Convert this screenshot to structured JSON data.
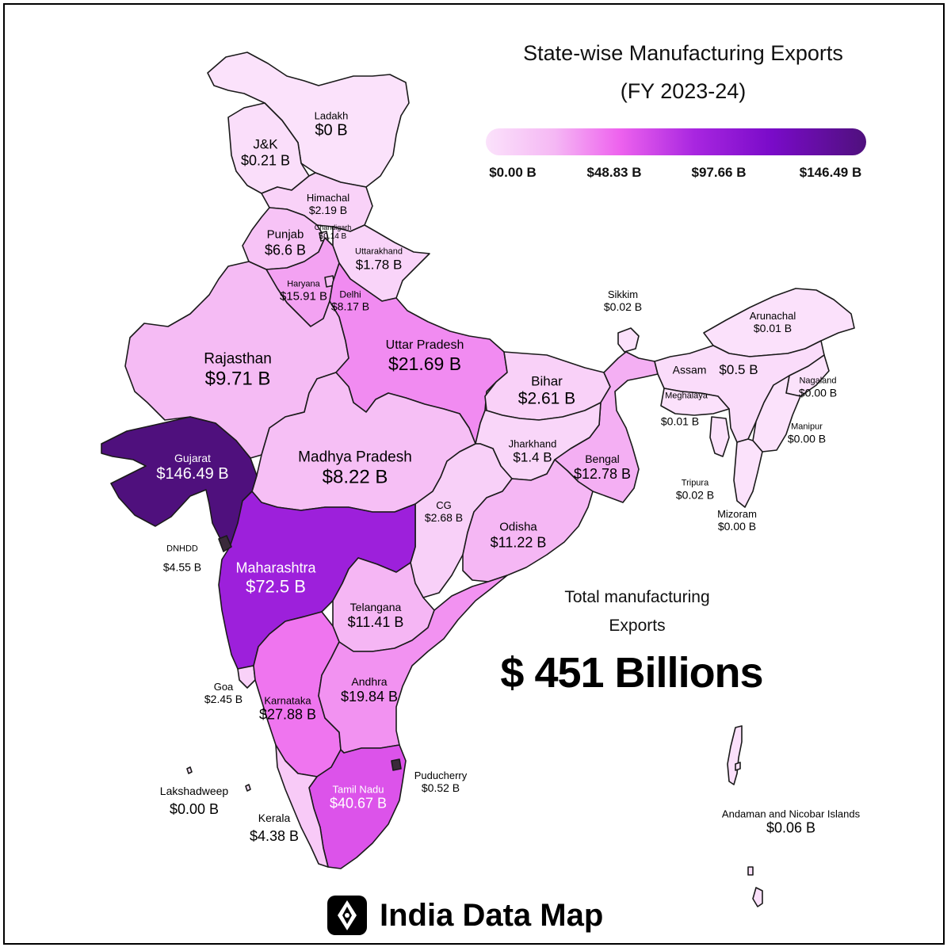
{
  "title": {
    "line1": "State-wise Manufacturing Exports",
    "line2": "(FY 2023-24)"
  },
  "legend": {
    "ticks": [
      "$0.00 B",
      "$48.83 B",
      "$97.66 B",
      "$146.49 B"
    ],
    "min": 0,
    "max": 146.49,
    "colors": [
      "#fbe2fb",
      "#f5b8f4",
      "#ee63ee",
      "#a826e0",
      "#7a0bc9",
      "#4f107d"
    ]
  },
  "total": {
    "line1": "Total manufacturing",
    "line2": "Exports",
    "value": "$ 451 Billions"
  },
  "brand": {
    "name": "India Data Map",
    "icon": "compass-diamond-icon"
  },
  "regions": [
    {
      "id": "ladakh",
      "name": "Ladakh",
      "value": "$0 B",
      "amount": 0
    },
    {
      "id": "jk",
      "name": "J&K",
      "value": "$0.21 B",
      "amount": 0.21
    },
    {
      "id": "himachal",
      "name": "Himachal",
      "value": "$2.19 B",
      "amount": 2.19
    },
    {
      "id": "chandigarh",
      "name": "Chandigarh",
      "value": "$0.14 B",
      "amount": 0.14
    },
    {
      "id": "punjab",
      "name": "Punjab",
      "value": "$6.6 B",
      "amount": 6.6
    },
    {
      "id": "uttarakhand",
      "name": "Uttarakhand",
      "value": "$1.78 B",
      "amount": 1.78
    },
    {
      "id": "haryana",
      "name": "Haryana",
      "value": "$15.91 B",
      "amount": 15.91
    },
    {
      "id": "delhi",
      "name": "Delhi",
      "value": "$8.17 B",
      "amount": 8.17
    },
    {
      "id": "rajasthan",
      "name": "Rajasthan",
      "value": "$9.71 B",
      "amount": 9.71
    },
    {
      "id": "up",
      "name": "Uttar Pradesh",
      "value": "$21.69 B",
      "amount": 21.69
    },
    {
      "id": "bihar",
      "name": "Bihar",
      "value": "$2.61 B",
      "amount": 2.61
    },
    {
      "id": "sikkim",
      "name": "Sikkim",
      "value": "$0.02 B",
      "amount": 0.02
    },
    {
      "id": "arunachal",
      "name": "Arunachal",
      "value": "$0.01 B",
      "amount": 0.01
    },
    {
      "id": "assam",
      "name": "Assam",
      "value": "$0.5 B",
      "amount": 0.5
    },
    {
      "id": "meghalaya",
      "name": "Meghalaya",
      "value": "$0.01 B",
      "amount": 0.01
    },
    {
      "id": "nagaland",
      "name": "Nagaland",
      "value": "$0.00 B",
      "amount": 0
    },
    {
      "id": "manipur",
      "name": "Manipur",
      "value": "$0.00 B",
      "amount": 0
    },
    {
      "id": "tripura",
      "name": "Tripura",
      "value": "$0.02 B",
      "amount": 0.02
    },
    {
      "id": "mizoram",
      "name": "Mizoram",
      "value": "$0.00 B",
      "amount": 0
    },
    {
      "id": "gujarat",
      "name": "Gujarat",
      "value": "$146.49 B",
      "amount": 146.49
    },
    {
      "id": "mp",
      "name": "Madhya Pradesh",
      "value": "$8.22 B",
      "amount": 8.22
    },
    {
      "id": "jharkhand",
      "name": "Jharkhand",
      "value": "$1.4 B",
      "amount": 1.4
    },
    {
      "id": "bengal",
      "name": "Bengal",
      "value": "$12.78 B",
      "amount": 12.78
    },
    {
      "id": "cg",
      "name": "CG",
      "value": "$2.68 B",
      "amount": 2.68
    },
    {
      "id": "odisha",
      "name": "Odisha",
      "value": "$11.22 B",
      "amount": 11.22
    },
    {
      "id": "dnhdd",
      "name": "DNHDD",
      "value": "$4.55 B",
      "amount": 4.55
    },
    {
      "id": "maharashtra",
      "name": "Maharashtra",
      "value": "$72.5 B",
      "amount": 72.5
    },
    {
      "id": "telangana",
      "name": "Telangana",
      "value": "$11.41 B",
      "amount": 11.41
    },
    {
      "id": "goa",
      "name": "Goa",
      "value": "$2.45 B",
      "amount": 2.45
    },
    {
      "id": "karnataka",
      "name": "Karnataka",
      "value": "$27.88 B",
      "amount": 27.88
    },
    {
      "id": "andhra",
      "name": "Andhra",
      "value": "$19.84 B",
      "amount": 19.84
    },
    {
      "id": "lakshadweep",
      "name": "Lakshadweep",
      "value": "$0.00 B",
      "amount": 0
    },
    {
      "id": "puducherry",
      "name": "Puducherry",
      "value": "$0.52 B",
      "amount": 0.52
    },
    {
      "id": "tamilnadu",
      "name": "Tamil Nadu",
      "value": "$40.67 B",
      "amount": 40.67
    },
    {
      "id": "kerala",
      "name": "Kerala",
      "value": "$4.38 B",
      "amount": 4.38
    },
    {
      "id": "andaman",
      "name": "Andaman and Nicobar Islands",
      "value": "$0.06 B",
      "amount": 0.06
    }
  ]
}
